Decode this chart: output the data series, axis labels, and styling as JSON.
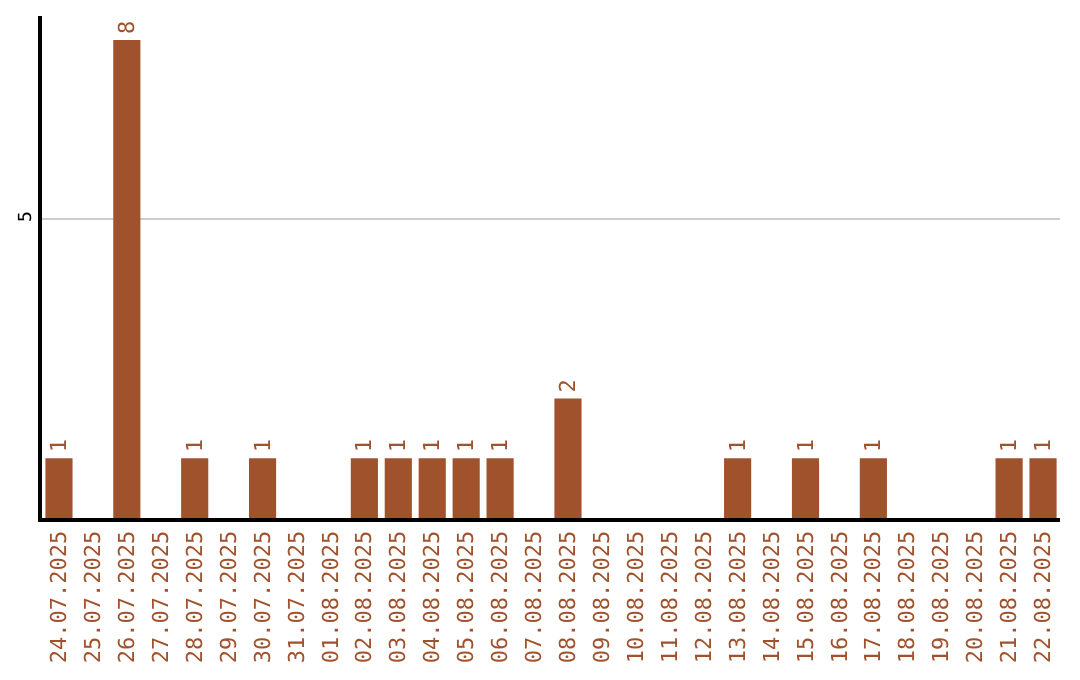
{
  "chart_data": {
    "type": "bar",
    "categories": [
      "24.07.2025",
      "25.07.2025",
      "26.07.2025",
      "27.07.2025",
      "28.07.2025",
      "29.07.2025",
      "30.07.2025",
      "31.07.2025",
      "01.08.2025",
      "02.08.2025",
      "03.08.2025",
      "04.08.2025",
      "05.08.2025",
      "06.08.2025",
      "07.08.2025",
      "08.08.2025",
      "09.08.2025",
      "10.08.2025",
      "11.08.2025",
      "12.08.2025",
      "13.08.2025",
      "14.08.2025",
      "15.08.2025",
      "16.08.2025",
      "17.08.2025",
      "18.08.2025",
      "19.08.2025",
      "20.08.2025",
      "21.08.2025",
      "22.08.2025"
    ],
    "values": [
      1,
      0,
      8,
      0,
      1,
      0,
      1,
      0,
      0,
      1,
      1,
      1,
      1,
      1,
      0,
      2,
      0,
      0,
      0,
      0,
      1,
      0,
      1,
      0,
      1,
      0,
      0,
      0,
      1,
      1
    ],
    "value_labels": [
      "1",
      null,
      "8",
      null,
      "1",
      null,
      "1",
      null,
      null,
      "1",
      "1",
      "1",
      "1",
      "1",
      null,
      "2",
      null,
      null,
      null,
      null,
      "1",
      null,
      "1",
      null,
      "1",
      null,
      null,
      null,
      "1",
      "1"
    ],
    "color": "#a0522d",
    "ylim": [
      0,
      8.4
    ],
    "yticks": [
      5
    ],
    "grid": "y",
    "legend": false
  }
}
